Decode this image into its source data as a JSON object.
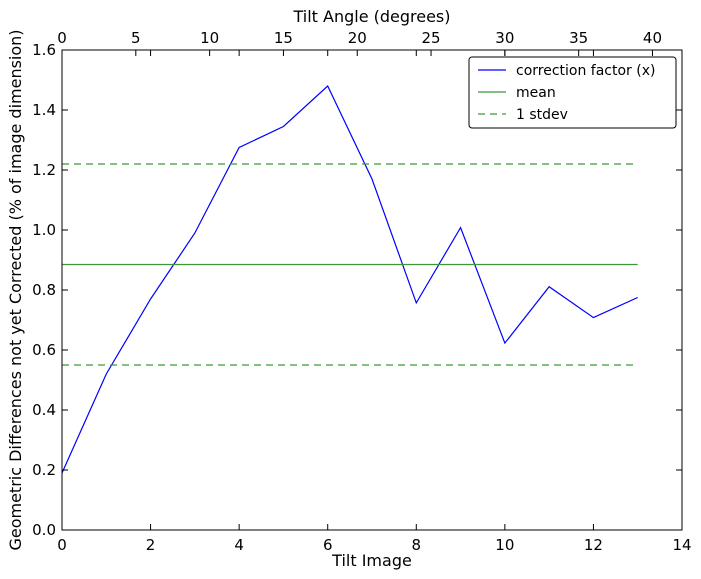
{
  "chart_data": {
    "type": "line",
    "xlabel": "Tilt Image",
    "ylabel": "Geometric Differences not yet Corrected (% of image dimension)",
    "top_xlabel": "Tilt Angle (degrees)",
    "xlim": [
      0,
      14
    ],
    "ylim": [
      0,
      1.6
    ],
    "top_xlim": [
      0,
      42
    ],
    "x_ticks": [
      "0",
      "2",
      "4",
      "6",
      "8",
      "10",
      "12",
      "14"
    ],
    "x_tick_values": [
      0,
      2,
      4,
      6,
      8,
      10,
      12,
      14
    ],
    "y_ticks": [
      "0.0",
      "0.2",
      "0.4",
      "0.6",
      "0.8",
      "1.0",
      "1.2",
      "1.4",
      "1.6"
    ],
    "y_tick_values": [
      0,
      0.2,
      0.4,
      0.6,
      0.8,
      1.0,
      1.2,
      1.4,
      1.6
    ],
    "top_x_ticks": [
      "0",
      "5",
      "10",
      "15",
      "20",
      "25",
      "30",
      "35",
      "40"
    ],
    "top_x_tick_values": [
      0,
      5,
      10,
      15,
      20,
      25,
      30,
      35,
      40
    ],
    "grid": false,
    "legend_position": "top-right",
    "series": [
      {
        "name": "correction factor (x)",
        "color": "#0000ff",
        "style": "solid",
        "x": [
          0,
          1,
          2,
          3,
          4,
          5,
          6,
          7,
          8,
          9,
          10,
          11,
          12,
          13
        ],
        "values": [
          0.19,
          0.52,
          0.77,
          0.99,
          1.275,
          1.345,
          1.48,
          1.17,
          0.757,
          1.008,
          0.623,
          0.811,
          0.708,
          0.775
        ]
      },
      {
        "name": "mean",
        "color": "#3a9a3a",
        "style": "solid",
        "x": [
          0,
          13
        ],
        "values": [
          0.885,
          0.885
        ]
      },
      {
        "name": "1 stdev",
        "color": "#3a9a3a",
        "style": "dashed",
        "x": [
          0,
          13
        ],
        "values": [
          1.22,
          1.22
        ]
      },
      {
        "name": "",
        "color": "#3a9a3a",
        "style": "dashed",
        "x": [
          0,
          13
        ],
        "values": [
          0.55,
          0.55
        ]
      }
    ]
  }
}
